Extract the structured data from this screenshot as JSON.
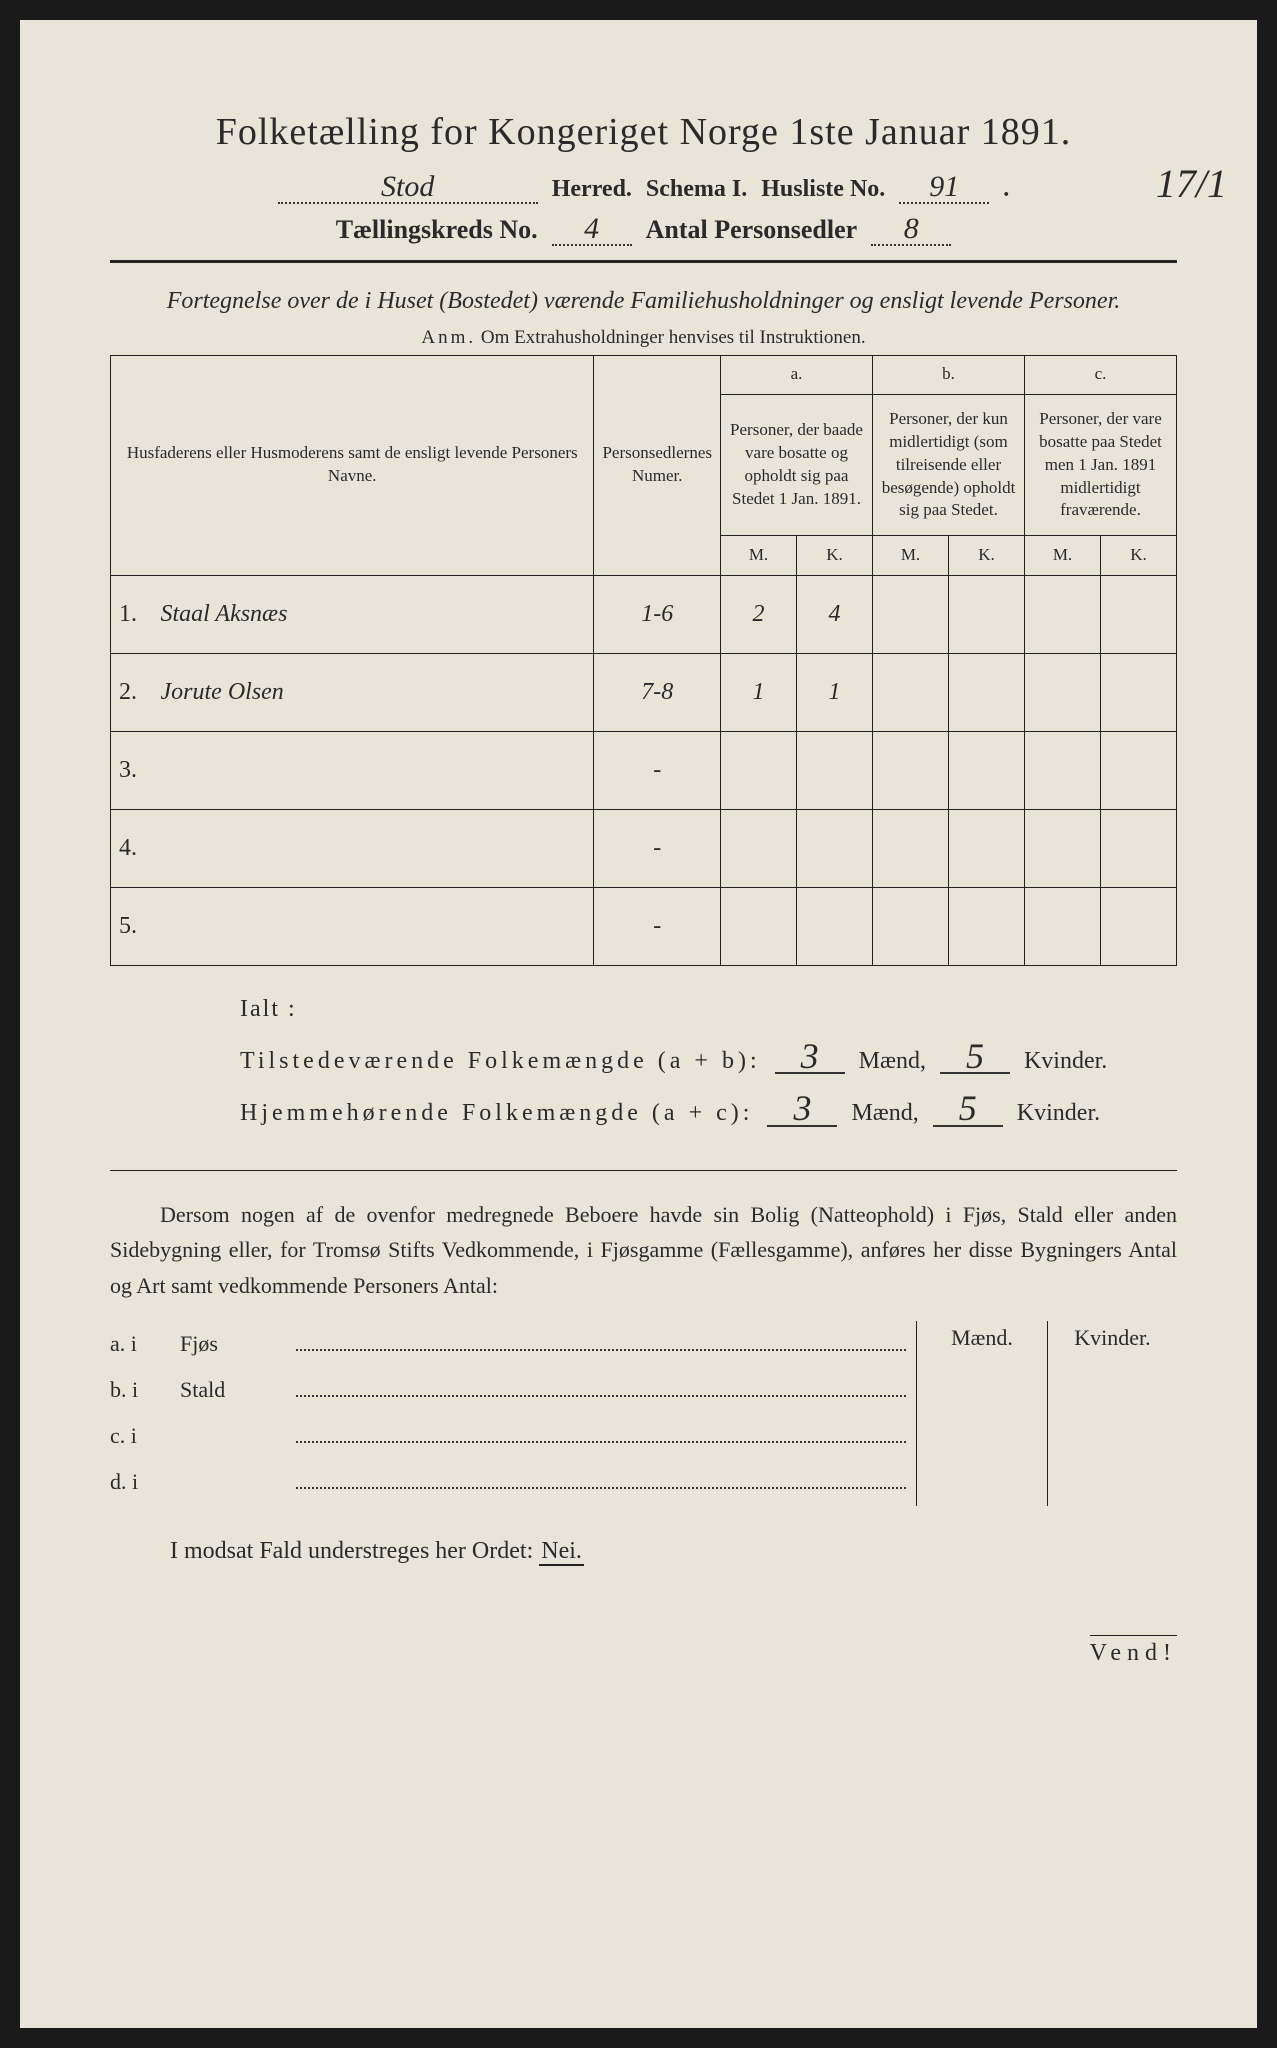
{
  "title": "Folketælling for Kongeriget Norge 1ste Januar 1891.",
  "header": {
    "herred_value": "Stod",
    "herred_label": "Herred.",
    "schema_label": "Schema I.",
    "husliste_label": "Husliste No.",
    "husliste_value": "91",
    "kreds_label": "Tællingskreds No.",
    "kreds_value": "4",
    "antal_label": "Antal Personsedler",
    "antal_value": "8",
    "margin_note": "17/1"
  },
  "subtitle": "Fortegnelse over de i Huset (Bostedet) værende Familiehusholdninger og ensligt levende Personer.",
  "anm_label": "Anm.",
  "anm_text": "Om Extrahusholdninger henvises til Instruktionen.",
  "table": {
    "col_name": "Husfaderens eller Husmoderens samt de ensligt levende Personers Navne.",
    "col_numer": "Personsedlernes Numer.",
    "col_a_label": "a.",
    "col_a": "Personer, der baade vare bosatte og opholdt sig paa Stedet 1 Jan. 1891.",
    "col_b_label": "b.",
    "col_b": "Personer, der kun midlertidigt (som tilreisende eller besøgende) opholdt sig paa Stedet.",
    "col_c_label": "c.",
    "col_c": "Personer, der vare bosatte paa Stedet men 1 Jan. 1891 midlertidigt fraværende.",
    "m": "M.",
    "k": "K.",
    "rows": [
      {
        "n": "1.",
        "name": "Staal Aksnæs",
        "numer": "1-6",
        "a_m": "2",
        "a_k": "4",
        "b_m": "",
        "b_k": "",
        "c_m": "",
        "c_k": ""
      },
      {
        "n": "2.",
        "name": "Jorute Olsen",
        "numer": "7-8",
        "a_m": "1",
        "a_k": "1",
        "b_m": "",
        "b_k": "",
        "c_m": "",
        "c_k": ""
      },
      {
        "n": "3.",
        "name": "",
        "numer": "-",
        "a_m": "",
        "a_k": "",
        "b_m": "",
        "b_k": "",
        "c_m": "",
        "c_k": ""
      },
      {
        "n": "4.",
        "name": "",
        "numer": "-",
        "a_m": "",
        "a_k": "",
        "b_m": "",
        "b_k": "",
        "c_m": "",
        "c_k": ""
      },
      {
        "n": "5.",
        "name": "",
        "numer": "-",
        "a_m": "",
        "a_k": "",
        "b_m": "",
        "b_k": "",
        "c_m": "",
        "c_k": ""
      }
    ]
  },
  "ialt": "Ialt :",
  "totals": {
    "line1_label": "Tilstedeværende Folkemængde (a + b):",
    "line2_label": "Hjemmehørende Folkemængde (a + c):",
    "maend": "Mænd,",
    "kvinder": "Kvinder.",
    "v1_m": "3",
    "v1_k": "5",
    "v2_m": "3",
    "v2_k": "5"
  },
  "para": "Dersom nogen af de ovenfor medregnede Beboere havde sin Bolig (Natteophold) i Fjøs, Stald eller anden Sidebygning eller, for Tromsø Stifts Vedkommende, i Fjøsgamme (Fællesgamme), anføres her disse Bygningers Antal og Art samt vedkommende Personers Antal:",
  "buildings": {
    "maend": "Mænd.",
    "kvinder": "Kvinder.",
    "rows": [
      {
        "lab": "a.  i",
        "name": "Fjøs"
      },
      {
        "lab": "b.  i",
        "name": "Stald"
      },
      {
        "lab": "c.  i",
        "name": ""
      },
      {
        "lab": "d.  i",
        "name": ""
      }
    ]
  },
  "nei_line_pre": "I modsat Fald understreges her Ordet:",
  "nei": "Nei.",
  "vend": "Vend!"
}
